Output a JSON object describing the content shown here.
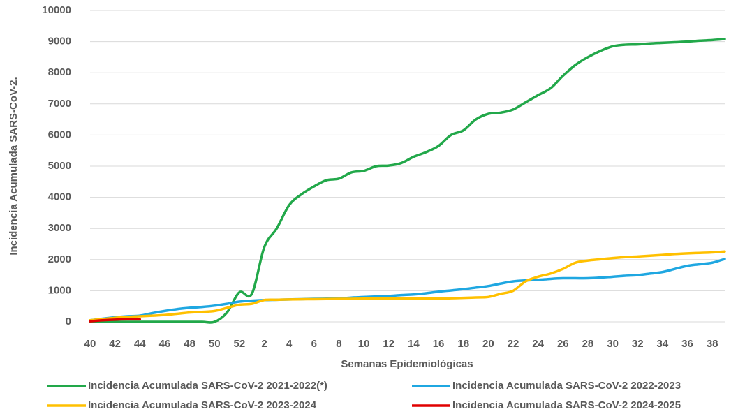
{
  "chart_data": {
    "type": "line",
    "ylabel": "Incidencia Acumulada SARS-CoV-2.",
    "xlabel": "Semanas Epidemiológicas",
    "categories": [
      "40",
      null,
      "42",
      null,
      "44",
      null,
      "46",
      null,
      "48",
      null,
      "50",
      null,
      "52",
      null,
      "2",
      null,
      "4",
      null,
      "6",
      null,
      "8",
      null,
      "10",
      null,
      "12",
      null,
      "14",
      null,
      "16",
      null,
      "18",
      null,
      "20",
      null,
      "22",
      null,
      "24",
      null,
      "26",
      null,
      "28",
      null,
      "30",
      null,
      "32",
      null,
      "34",
      null,
      "36",
      null,
      "38",
      null
    ],
    "series": [
      {
        "name": "Incidencia Acumulada SARS-CoV-2 2021-2022(*)",
        "color": "#22a84a",
        "values": [
          0,
          0,
          0,
          0,
          0,
          0,
          0,
          0,
          0,
          0,
          0,
          300,
          950,
          900,
          2400,
          3000,
          3750,
          4100,
          4350,
          4550,
          4600,
          4800,
          4850,
          5000,
          5020,
          5100,
          5300,
          5450,
          5650,
          6000,
          6150,
          6500,
          6680,
          6720,
          6820,
          7050,
          7280,
          7500,
          7900,
          8250,
          8500,
          8700,
          8850,
          8900,
          8910,
          8940,
          8960,
          8980,
          9000,
          9030,
          9050,
          9080
        ]
      },
      {
        "name": "Incidencia Acumulada SARS-CoV-2 2022-2023",
        "color": "#1fa7e1",
        "values": [
          50,
          100,
          150,
          180,
          200,
          280,
          350,
          410,
          450,
          480,
          520,
          580,
          650,
          680,
          700,
          710,
          720,
          730,
          740,
          745,
          750,
          780,
          800,
          815,
          830,
          860,
          880,
          920,
          970,
          1010,
          1050,
          1100,
          1150,
          1230,
          1300,
          1330,
          1350,
          1380,
          1400,
          1400,
          1400,
          1420,
          1450,
          1480,
          1500,
          1550,
          1600,
          1700,
          1800,
          1850,
          1900,
          2020
        ]
      },
      {
        "name": "Incidencia Acumulada SARS-CoV-2 2023-2024",
        "color": "#ffc000",
        "values": [
          50,
          90,
          130,
          160,
          180,
          200,
          220,
          260,
          300,
          320,
          350,
          450,
          550,
          580,
          700,
          710,
          720,
          725,
          730,
          735,
          740,
          740,
          745,
          745,
          750,
          750,
          750,
          750,
          750,
          760,
          770,
          785,
          800,
          900,
          1000,
          1300,
          1450,
          1550,
          1700,
          1900,
          1970,
          2010,
          2050,
          2080,
          2100,
          2125,
          2150,
          2180,
          2200,
          2215,
          2230,
          2260
        ]
      },
      {
        "name": "Incidencia Acumulada SARS-CoV-2 2024-2025",
        "color": "#e00000",
        "values": [
          20,
          50,
          70,
          80,
          80,
          null,
          null,
          null,
          null,
          null,
          null,
          null,
          null,
          null,
          null,
          null,
          null,
          null,
          null,
          null,
          null,
          null,
          null,
          null,
          null,
          null,
          null,
          null,
          null,
          null,
          null,
          null,
          null,
          null,
          null,
          null,
          null,
          null,
          null,
          null,
          null,
          null,
          null,
          null,
          null,
          null,
          null,
          null,
          null,
          null,
          null,
          null
        ]
      }
    ],
    "ylim": [
      0,
      10000
    ],
    "yticks": [
      0,
      1000,
      2000,
      3000,
      4000,
      5000,
      6000,
      7000,
      8000,
      9000,
      10000
    ],
    "grid": true,
    "legend": "bottom"
  }
}
